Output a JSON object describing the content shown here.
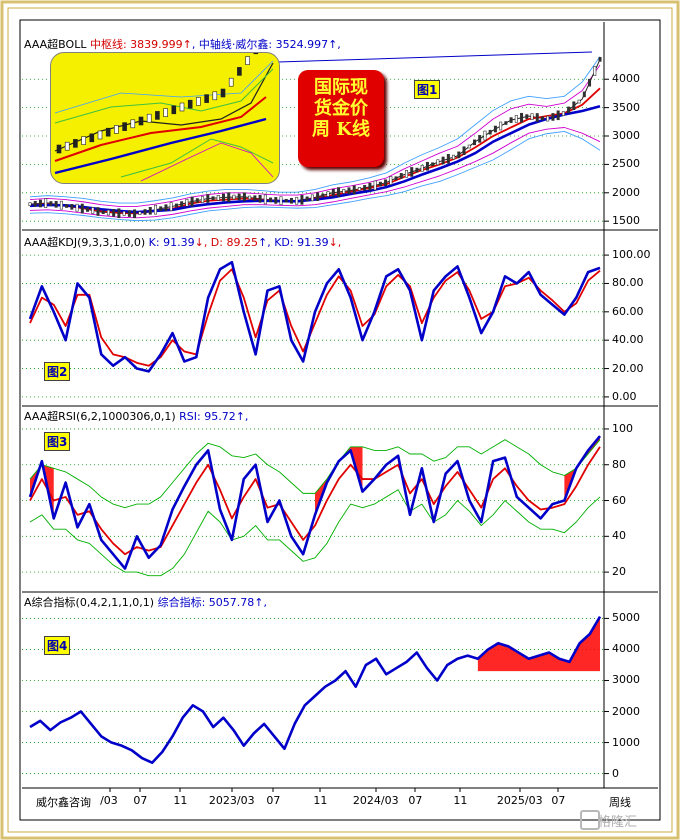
{
  "window": {
    "brand": "威尔鑫咨询",
    "period_label": "周线",
    "watermark": "格隆汇"
  },
  "header_boll": {
    "name": "AAA超BOLL",
    "mid_label": "中枢线: 3839.999",
    "mid_arrow": "↑",
    "axis_label": ", 中轴线·威尔鑫: 3524.997",
    "axis_arrow": "↑,"
  },
  "header_kdj": {
    "name": "AAA超KDJ(9,3,3,1,0,0)",
    "k": "K: 91.39",
    "k_arrow": "↓",
    "d": ", D: 89.25",
    "d_arrow": "↑",
    "kd": ", KD: 91.39",
    "kd_arrow": "↓,"
  },
  "header_rsi": {
    "name": "AAA超RSI(6,2,1000306,0,1)",
    "rsi": "RSI: 95.72",
    "rsi_arrow": "↑,"
  },
  "header_comp": {
    "name": "A综合指标(0,4,2,1,1,0,1)",
    "value": "综合指标: 5057.78",
    "value_arrow": "↑,"
  },
  "tags": {
    "p1": "图1",
    "p2": "图2",
    "p3": "图3",
    "p4": "图4"
  },
  "title_box": {
    "line1": "国际现",
    "line2": "货金价",
    "line3": "周  K线"
  },
  "colors": {
    "blue": "#0000c8",
    "red": "#e00000",
    "green": "#00b000",
    "magenta": "#d000d0",
    "fill": "#ff0000",
    "frame": "#d8c070"
  },
  "chart_data": [
    {
      "type": "line",
      "panel": "BOLL",
      "x_ticks": [
        "/03",
        "07",
        "11",
        "2023/03",
        "07",
        "11",
        "2024/03",
        "07",
        "11",
        "2025/03",
        "07"
      ],
      "y_ticks": [
        1500,
        2000,
        2500,
        3000,
        3500,
        4000
      ],
      "ylim": [
        1380,
        4550
      ],
      "series": [
        {
          "name": "中轴线·威尔鑫",
          "color": "blue",
          "values": [
            1770,
            1785,
            1780,
            1750,
            1710,
            1680,
            1660,
            1680,
            1700,
            1760,
            1800,
            1830,
            1850,
            1860,
            1855,
            1850,
            1880,
            1920,
            1980,
            2030,
            2100,
            2200,
            2320,
            2430,
            2550,
            2700,
            2900,
            3050,
            3200,
            3300,
            3380,
            3440,
            3525
          ]
        },
        {
          "name": "中枢线",
          "color": "red",
          "values": [
            1780,
            1800,
            1770,
            1730,
            1680,
            1650,
            1640,
            1680,
            1720,
            1810,
            1860,
            1880,
            1900,
            1880,
            1860,
            1850,
            1900,
            1960,
            2020,
            2080,
            2150,
            2280,
            2400,
            2500,
            2620,
            2800,
            3000,
            3150,
            3300,
            3350,
            3400,
            3550,
            3840
          ]
        },
        {
          "name": "price",
          "color": "black",
          "values": [
            1800,
            1820,
            1770,
            1720,
            1660,
            1640,
            1630,
            1700,
            1760,
            1840,
            1900,
            1920,
            1930,
            1890,
            1860,
            1860,
            1920,
            2000,
            2040,
            2100,
            2180,
            2320,
            2430,
            2550,
            2650,
            2900,
            3100,
            3280,
            3350,
            3300,
            3400,
            3650,
            4350
          ]
        },
        {
          "name": "upper band",
          "color": "magenta",
          "values": [
            1880,
            1900,
            1880,
            1840,
            1790,
            1760,
            1760,
            1800,
            1850,
            1920,
            1970,
            2000,
            2000,
            1980,
            1960,
            1960,
            2000,
            2070,
            2120,
            2180,
            2260,
            2420,
            2560,
            2700,
            2820,
            3050,
            3300,
            3480,
            3560,
            3520,
            3580,
            3800,
            4250
          ]
        },
        {
          "name": "lower band",
          "color": "magenta",
          "values": [
            1690,
            1700,
            1680,
            1640,
            1600,
            1570,
            1560,
            1580,
            1620,
            1680,
            1730,
            1760,
            1790,
            1790,
            1780,
            1770,
            1790,
            1840,
            1900,
            1960,
            2020,
            2100,
            2200,
            2300,
            2420,
            2550,
            2700,
            2880,
            3050,
            3120,
            3150,
            3050,
            2900
          ]
        },
        {
          "name": "outer upper",
          "color": "cyan",
          "values": [
            1930,
            1950,
            1930,
            1900,
            1850,
            1820,
            1820,
            1860,
            1910,
            1980,
            2030,
            2060,
            2060,
            2040,
            2010,
            2010,
            2060,
            2140,
            2190,
            2260,
            2350,
            2520,
            2670,
            2800,
            2950,
            3200,
            3450,
            3620,
            3700,
            3660,
            3700,
            3950,
            4400
          ]
        },
        {
          "name": "outer lower",
          "color": "cyan",
          "values": [
            1640,
            1650,
            1630,
            1600,
            1560,
            1530,
            1510,
            1520,
            1560,
            1620,
            1680,
            1710,
            1740,
            1750,
            1740,
            1730,
            1740,
            1790,
            1840,
            1900,
            1950,
            2020,
            2120,
            2200,
            2320,
            2450,
            2580,
            2760,
            2950,
            3040,
            3080,
            2950,
            2750
          ]
        }
      ]
    },
    {
      "type": "line",
      "panel": "KDJ",
      "y_ticks": [
        0,
        20,
        40,
        60,
        80,
        100
      ],
      "ylim": [
        -5,
        105
      ],
      "series": [
        {
          "name": "K",
          "color": "blue",
          "values": [
            55,
            78,
            60,
            40,
            80,
            70,
            30,
            22,
            28,
            20,
            18,
            30,
            45,
            25,
            28,
            70,
            90,
            95,
            60,
            30,
            75,
            78,
            40,
            25,
            60,
            80,
            90,
            70,
            40,
            60,
            85,
            90,
            75,
            40,
            75,
            85,
            92,
            70,
            45,
            60,
            85,
            80,
            88,
            72,
            65,
            58,
            70,
            88,
            91
          ]
        },
        {
          "name": "D",
          "color": "red",
          "values": [
            52,
            70,
            65,
            50,
            72,
            72,
            42,
            30,
            28,
            24,
            22,
            28,
            40,
            32,
            30,
            58,
            82,
            90,
            70,
            42,
            68,
            75,
            50,
            32,
            52,
            72,
            85,
            75,
            50,
            58,
            78,
            86,
            78,
            52,
            70,
            82,
            88,
            75,
            55,
            60,
            78,
            80,
            84,
            75,
            68,
            60,
            66,
            82,
            89
          ]
        }
      ]
    },
    {
      "type": "line",
      "panel": "RSI",
      "y_ticks": [
        20,
        40,
        60,
        80,
        100
      ],
      "ylim": [
        10,
        105
      ],
      "series": [
        {
          "name": "RSI",
          "color": "blue",
          "values": [
            62,
            82,
            50,
            70,
            45,
            58,
            38,
            30,
            22,
            40,
            28,
            35,
            55,
            68,
            80,
            88,
            55,
            38,
            72,
            80,
            48,
            60,
            40,
            30,
            52,
            70,
            82,
            88,
            65,
            72,
            80,
            85,
            52,
            78,
            48,
            75,
            82,
            60,
            48,
            82,
            84,
            62,
            56,
            50,
            58,
            60,
            78,
            88,
            96
          ]
        },
        {
          "name": "RSI-MA",
          "color": "red",
          "values": [
            60,
            72,
            60,
            62,
            52,
            54,
            44,
            36,
            30,
            34,
            32,
            34,
            46,
            58,
            70,
            80,
            66,
            50,
            62,
            72,
            56,
            58,
            48,
            38,
            46,
            60,
            72,
            80,
            72,
            72,
            76,
            80,
            64,
            72,
            58,
            68,
            76,
            66,
            56,
            72,
            78,
            68,
            60,
            55,
            56,
            58,
            68,
            80,
            90
          ]
        },
        {
          "name": "upper band",
          "color": "green",
          "values": [
            72,
            80,
            78,
            76,
            72,
            68,
            62,
            58,
            56,
            58,
            58,
            62,
            70,
            78,
            86,
            92,
            90,
            85,
            84,
            86,
            80,
            76,
            70,
            64,
            64,
            72,
            82,
            90,
            90,
            88,
            88,
            90,
            86,
            86,
            82,
            84,
            90,
            90,
            86,
            90,
            94,
            90,
            86,
            80,
            76,
            74,
            78,
            86,
            94
          ]
        },
        {
          "name": "lower band",
          "color": "green",
          "values": [
            48,
            52,
            44,
            44,
            38,
            36,
            30,
            24,
            20,
            20,
            18,
            18,
            22,
            30,
            42,
            54,
            48,
            38,
            40,
            46,
            38,
            38,
            32,
            26,
            28,
            36,
            48,
            58,
            56,
            58,
            62,
            66,
            54,
            58,
            48,
            52,
            60,
            54,
            46,
            52,
            60,
            54,
            48,
            44,
            44,
            42,
            48,
            56,
            62
          ]
        }
      ]
    },
    {
      "type": "line",
      "panel": "综合指标",
      "y_ticks": [
        0,
        1000,
        2000,
        3000,
        4000,
        5000
      ],
      "ylim": [
        -400,
        5400
      ],
      "series": [
        {
          "name": "综合指标",
          "color": "blue",
          "values": [
            1500,
            1700,
            1400,
            1650,
            1800,
            2000,
            1600,
            1200,
            1000,
            900,
            750,
            500,
            350,
            700,
            1200,
            1800,
            2200,
            2000,
            1500,
            1800,
            1400,
            900,
            1300,
            1600,
            1200,
            800,
            1600,
            2200,
            2500,
            2800,
            3000,
            3300,
            2800,
            3500,
            3700,
            3200,
            3400,
            3600,
            3900,
            3400,
            3000,
            3500,
            3700,
            3800,
            3700,
            4000,
            4200,
            4100,
            3900,
            3700,
            3800,
            3900,
            3700,
            3600,
            4200,
            4500,
            5058
          ]
        }
      ]
    }
  ]
}
